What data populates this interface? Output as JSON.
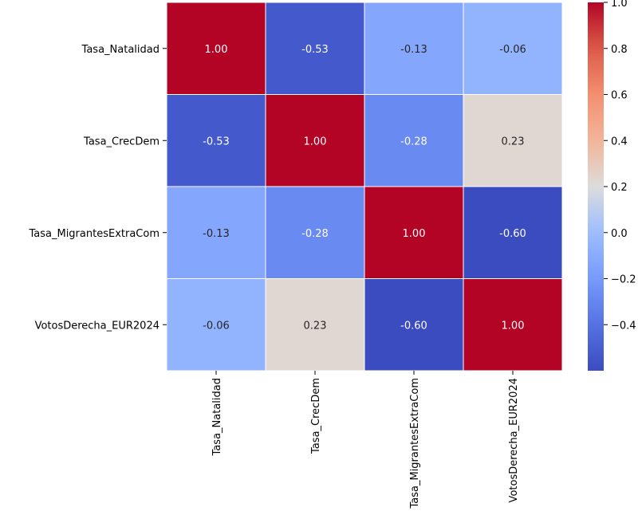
{
  "chart_data": {
    "type": "heatmap",
    "title": "",
    "xlabel": "",
    "ylabel": "",
    "x_categories": [
      "Tasa_Natalidad",
      "Tasa_CrecDem",
      "Tasa_MigrantesExtraCom",
      "VotosDerecha_EUR2024"
    ],
    "y_categories": [
      "Tasa_Natalidad",
      "Tasa_CrecDem",
      "Tasa_MigrantesExtraCom",
      "VotosDerecha_EUR2024"
    ],
    "values": [
      [
        1.0,
        -0.53,
        -0.13,
        -0.06
      ],
      [
        -0.53,
        1.0,
        -0.28,
        0.23
      ],
      [
        -0.13,
        -0.28,
        1.0,
        -0.6
      ],
      [
        -0.06,
        0.23,
        -0.6,
        1.0
      ]
    ],
    "annotation_format": "0.00",
    "colormap": "coolwarm",
    "colorbar": {
      "range": [
        -0.6,
        1.0
      ],
      "ticks": [
        1.0,
        0.8,
        0.6,
        0.4,
        0.2,
        0.0,
        -0.2,
        -0.4
      ],
      "tick_labels": [
        "1.0",
        "0.8",
        "0.6",
        "0.4",
        "0.2",
        "0.0",
        "−0.2",
        "−0.4"
      ]
    },
    "cell_line_color": "#ffffff"
  }
}
